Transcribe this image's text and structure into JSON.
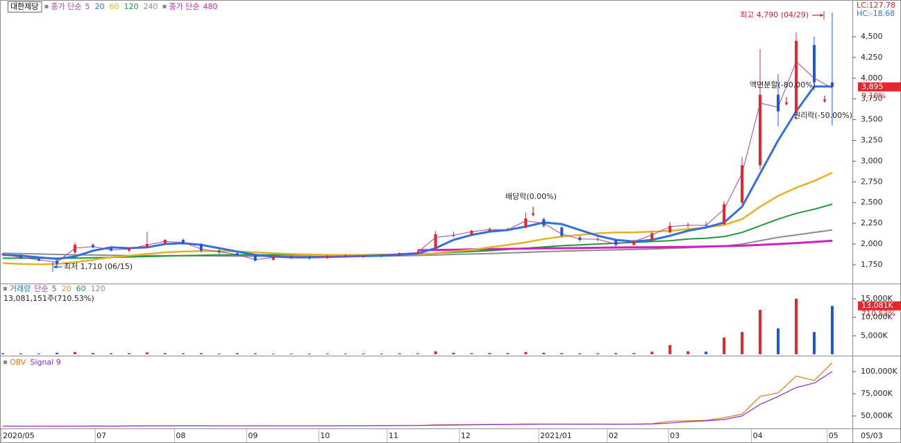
{
  "chart_data": [
    {
      "type": "candlestick",
      "title": "대한제당",
      "ma_label": "종가 단순",
      "lc_label": "LC:127.78",
      "hc_label": "HC:-18.68",
      "last_label": "3,895",
      "last_change": "9.10%",
      "up_color": "#e5262a",
      "down_color": "#1f56d6",
      "x": [
        0,
        5,
        10,
        15,
        20,
        25,
        30,
        35,
        40,
        45,
        50,
        55,
        60,
        65,
        70,
        75,
        80,
        85,
        90,
        95,
        100,
        105,
        110,
        115,
        120,
        125,
        130,
        135,
        140,
        145,
        150,
        155,
        160,
        165,
        170,
        175,
        180,
        185,
        190,
        195,
        200,
        205,
        210,
        215,
        220,
        225,
        230
      ],
      "open": [
        1880,
        1860,
        1820,
        1800,
        1900,
        1990,
        1950,
        1920,
        1960,
        2000,
        2050,
        2000,
        1920,
        1890,
        1860,
        1810,
        1850,
        1840,
        1830,
        1860,
        1850,
        1860,
        1870,
        1890,
        1950,
        2110,
        2110,
        2160,
        2180,
        2200,
        2300,
        2200,
        2080,
        2050,
        2050,
        1990,
        2040,
        2140,
        2220,
        2230,
        2240,
        2500,
        2950,
        3800,
        3600,
        4400,
        3950
      ],
      "high": [
        1890,
        1870,
        1840,
        1820,
        2020,
        2010,
        1970,
        1960,
        2150,
        2060,
        2070,
        2010,
        1940,
        1910,
        1880,
        1860,
        1870,
        1860,
        1870,
        1880,
        1870,
        1880,
        1900,
        1920,
        2160,
        2150,
        2170,
        2200,
        2200,
        2380,
        2320,
        2210,
        2100,
        2090,
        2060,
        2050,
        2150,
        2270,
        2260,
        2270,
        2520,
        3050,
        4350,
        4050,
        4550,
        4500,
        4790
      ],
      "low": [
        1860,
        1820,
        1790,
        1710,
        1880,
        1950,
        1910,
        1900,
        1950,
        1990,
        1990,
        1900,
        1880,
        1850,
        1790,
        1800,
        1820,
        1810,
        1820,
        1840,
        1830,
        1840,
        1860,
        1880,
        1940,
        2080,
        2100,
        2140,
        2160,
        2190,
        2200,
        2080,
        2030,
        2030,
        1960,
        1980,
        2030,
        2130,
        2190,
        2200,
        2230,
        2480,
        2900,
        3420,
        3500,
        3850,
        3430
      ],
      "close": [
        1870,
        1830,
        1800,
        1760,
        1990,
        1960,
        1920,
        1950,
        2000,
        2050,
        2010,
        1920,
        1900,
        1870,
        1800,
        1850,
        1840,
        1830,
        1860,
        1850,
        1860,
        1870,
        1890,
        1900,
        2120,
        2100,
        2160,
        2180,
        2170,
        2310,
        2220,
        2100,
        2050,
        2060,
        1990,
        2040,
        2130,
        2220,
        2230,
        2220,
        2480,
        2950,
        3800,
        3600,
        4450,
        3950,
        3895
      ],
      "series": [
        {
          "name": "5",
          "color": "#b43cb4",
          "values": [
            1875,
            1840,
            1810,
            1780,
            1950,
            1970,
            1930,
            1940,
            1990,
            2030,
            2020,
            1940,
            1905,
            1875,
            1810,
            1840,
            1845,
            1835,
            1855,
            1852,
            1858,
            1868,
            1885,
            1898,
            2080,
            2105,
            2150,
            2175,
            2172,
            2280,
            2250,
            2120,
            2060,
            2058,
            2000,
            2030,
            2110,
            2210,
            2228,
            2225,
            2420,
            2850,
            3700,
            3650,
            4200,
            4000,
            3880
          ]
        },
        {
          "name": "20",
          "color": "#2f6fe0",
          "values": [
            1870,
            1860,
            1840,
            1820,
            1850,
            1920,
            1960,
            1950,
            1960,
            2000,
            2010,
            1990,
            1950,
            1910,
            1870,
            1850,
            1840,
            1840,
            1845,
            1850,
            1855,
            1860,
            1870,
            1885,
            1950,
            2050,
            2110,
            2150,
            2170,
            2210,
            2260,
            2240,
            2170,
            2100,
            2050,
            2030,
            2050,
            2100,
            2160,
            2200,
            2260,
            2450,
            2850,
            3250,
            3600,
            3900,
            3900
          ]
        },
        {
          "name": "60",
          "color": "#e8b020",
          "values": [
            1770,
            1760,
            1755,
            1760,
            1780,
            1810,
            1840,
            1860,
            1880,
            1900,
            1910,
            1915,
            1915,
            1910,
            1900,
            1890,
            1880,
            1875,
            1870,
            1868,
            1865,
            1865,
            1870,
            1875,
            1890,
            1910,
            1930,
            1960,
            1990,
            2020,
            2060,
            2090,
            2110,
            2130,
            2140,
            2140,
            2150,
            2160,
            2180,
            2200,
            2230,
            2300,
            2450,
            2580,
            2680,
            2760,
            2860
          ]
        },
        {
          "name": "120",
          "color": "#1a9a3a",
          "values": [
            1830,
            1830,
            1830,
            1830,
            1830,
            1835,
            1840,
            1845,
            1850,
            1855,
            1860,
            1865,
            1870,
            1870,
            1870,
            1870,
            1870,
            1870,
            1870,
            1870,
            1870,
            1872,
            1875,
            1880,
            1890,
            1900,
            1910,
            1920,
            1935,
            1950,
            1965,
            1980,
            1990,
            2000,
            2010,
            2020,
            2030,
            2040,
            2060,
            2070,
            2090,
            2140,
            2220,
            2300,
            2370,
            2420,
            2480
          ]
        },
        {
          "name": "240",
          "color": "#8c8c8c",
          "values": [
            1890,
            1885,
            1880,
            1875,
            1870,
            1868,
            1865,
            1862,
            1860,
            1860,
            1860,
            1858,
            1856,
            1855,
            1853,
            1852,
            1850,
            1850,
            1850,
            1850,
            1852,
            1855,
            1858,
            1862,
            1868,
            1875,
            1880,
            1885,
            1892,
            1900,
            1908,
            1915,
            1920,
            1925,
            1930,
            1935,
            1940,
            1948,
            1955,
            1965,
            1975,
            2000,
            2040,
            2080,
            2110,
            2140,
            2170
          ]
        },
        {
          "name": "480",
          "color": "#d020c0",
          "values": [
            null,
            null,
            null,
            null,
            null,
            null,
            null,
            null,
            null,
            null,
            null,
            null,
            null,
            null,
            null,
            null,
            null,
            null,
            null,
            null,
            null,
            null,
            null,
            1925,
            1928,
            1932,
            1936,
            1940,
            1942,
            1945,
            1948,
            1950,
            1952,
            1955,
            1958,
            1960,
            1962,
            1964,
            1966,
            1970,
            1975,
            1980,
            1990,
            2000,
            2012,
            2025,
            2040
          ]
        }
      ],
      "annotations": [
        "최고 4,790 (04/29)",
        "최저 1,710 (06/15)",
        "배당락(0.00%)",
        "액면분할(-80.00%)",
        "권리락(-50.00%)"
      ],
      "xlim": [
        -0.4,
        235.6
      ],
      "xticks": [
        {
          "value": 0,
          "label": "2020/05"
        },
        {
          "value": 26,
          "label": "07"
        },
        {
          "value": 48,
          "label": "08"
        },
        {
          "value": 68,
          "label": "09"
        },
        {
          "value": 88,
          "label": "10"
        },
        {
          "value": 107,
          "label": "11"
        },
        {
          "value": 127,
          "label": "12"
        },
        {
          "value": 149,
          "label": "2021/01"
        },
        {
          "value": 168,
          "label": "02"
        },
        {
          "value": 185,
          "label": "03"
        },
        {
          "value": 208,
          "label": "04"
        },
        {
          "value": 229,
          "label": "05"
        }
      ],
      "x_end_label": "05/03",
      "ylim": [
        1532,
        4926
      ],
      "yticks": [
        {
          "value": 4500,
          "label": "4,500"
        },
        {
          "value": 4250,
          "label": "4,250"
        },
        {
          "value": 4000,
          "label": "4,000"
        },
        {
          "value": 3750,
          "label": "3,750"
        },
        {
          "value": 3500,
          "label": "3,500"
        },
        {
          "value": 3250,
          "label": "3,250"
        },
        {
          "value": 3000,
          "label": "3,000"
        },
        {
          "value": 2750,
          "label": "2,750"
        },
        {
          "value": 2500,
          "label": "2,500"
        },
        {
          "value": 2250,
          "label": "2,250"
        },
        {
          "value": 2000,
          "label": "2,000"
        },
        {
          "value": 1750,
          "label": "1,750"
        }
      ]
    },
    {
      "type": "bar",
      "title": "거래량",
      "ma_label": "단순",
      "ma_legend": [
        {
          "name": "5",
          "color": "#b43cb4"
        },
        {
          "name": "20",
          "color": "#e8961e"
        },
        {
          "name": "60",
          "color": "#1a9a3a"
        },
        {
          "name": "120",
          "color": "#8c8c8c"
        }
      ],
      "info": "13,081,151주(710.53%)",
      "last_label": "13,081K",
      "last_change": "710.53%",
      "x": [
        0,
        5,
        10,
        15,
        20,
        25,
        30,
        35,
        40,
        45,
        50,
        55,
        60,
        65,
        70,
        75,
        80,
        85,
        90,
        95,
        100,
        105,
        110,
        115,
        120,
        125,
        130,
        135,
        140,
        145,
        150,
        155,
        160,
        165,
        170,
        175,
        180,
        185,
        190,
        195,
        200,
        205,
        210,
        215,
        220,
        225,
        230
      ],
      "values": [
        300,
        250,
        200,
        400,
        600,
        350,
        250,
        300,
        500,
        300,
        250,
        300,
        200,
        300,
        250,
        200,
        200,
        200,
        200,
        200,
        200,
        200,
        250,
        250,
        800,
        400,
        300,
        350,
        300,
        600,
        400,
        300,
        250,
        250,
        300,
        300,
        700,
        2500,
        800,
        700,
        4500,
        6000,
        12000,
        7000,
        15000,
        6000,
        13081
      ],
      "ylim": [
        0,
        18940
      ],
      "yticks": [
        {
          "value": 15000,
          "label": "15,000K"
        },
        {
          "value": 10000,
          "label": "10,000K"
        },
        {
          "value": 5000,
          "label": "5,000K"
        }
      ]
    },
    {
      "type": "line",
      "x": [
        0,
        5,
        10,
        15,
        20,
        25,
        30,
        35,
        40,
        45,
        50,
        55,
        60,
        65,
        70,
        75,
        80,
        85,
        90,
        95,
        100,
        105,
        110,
        115,
        120,
        125,
        130,
        135,
        140,
        145,
        150,
        155,
        160,
        165,
        170,
        175,
        180,
        185,
        190,
        195,
        200,
        205,
        210,
        215,
        220,
        225,
        230
      ],
      "series": [
        {
          "name": "OBV",
          "color": "#e07a10",
          "values": [
            38500,
            38500,
            38400,
            38300,
            38600,
            38700,
            38600,
            38700,
            38900,
            39000,
            39000,
            38900,
            38900,
            38900,
            38800,
            38900,
            38900,
            38900,
            39000,
            39000,
            39000,
            39100,
            39200,
            39300,
            40000,
            40100,
            40300,
            40500,
            40500,
            40900,
            40800,
            40700,
            40600,
            40700,
            40600,
            40700,
            41200,
            44000,
            44500,
            45000,
            48000,
            52000,
            72000,
            76000,
            95000,
            90000,
            110000
          ]
        },
        {
          "name": "Signal 9",
          "color": "#8a2be2",
          "values": [
            38500,
            38500,
            38450,
            38400,
            38450,
            38550,
            38600,
            38650,
            38750,
            38850,
            38950,
            38950,
            38900,
            38900,
            38850,
            38850,
            38870,
            38880,
            38920,
            38960,
            38990,
            39040,
            39100,
            39180,
            39500,
            39750,
            40000,
            40200,
            40350,
            40600,
            40700,
            40700,
            40650,
            40650,
            40620,
            40650,
            40900,
            42000,
            43500,
            44500,
            46000,
            50000,
            63000,
            72000,
            82000,
            87000,
            100000
          ]
        }
      ],
      "ylim": [
        36700,
        116400
      ],
      "yticks": [
        {
          "value": 100000,
          "label": "100,000K"
        },
        {
          "value": 75000,
          "label": "75,000K"
        },
        {
          "value": 50000,
          "label": "50,000K"
        }
      ]
    }
  ]
}
